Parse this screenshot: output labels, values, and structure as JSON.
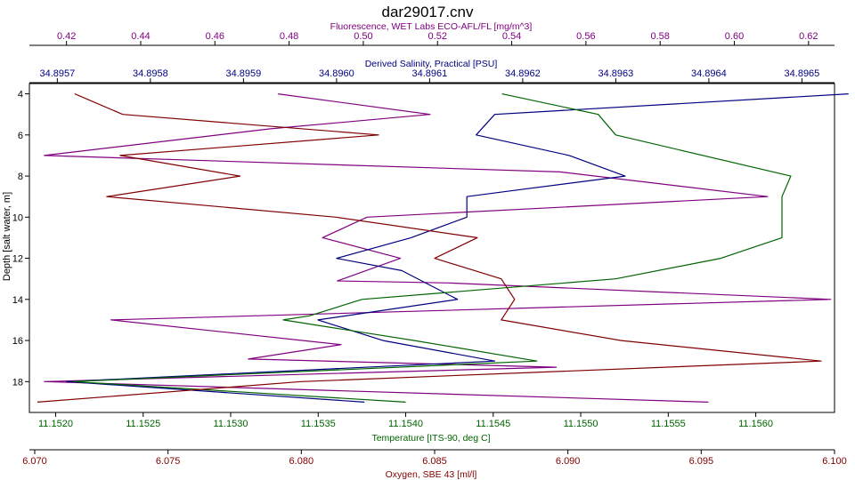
{
  "chart_data": {
    "type": "line",
    "title": "dar29017.cnv",
    "ylabel": "Depth [salt water, m]",
    "ylim": [
      19.5,
      3.5
    ],
    "yticks": [
      4,
      6,
      8,
      10,
      12,
      14,
      16,
      18
    ],
    "grid": false,
    "depths": [
      4,
      5,
      6,
      7,
      8,
      9,
      10,
      11,
      12,
      13,
      14,
      15,
      16,
      17,
      18,
      19
    ],
    "axes": {
      "fluorescence": {
        "label": "Fluorescence, WET Labs ECO-AFL/FL [mg/m^3]",
        "position": "top",
        "range": [
          0.41,
          0.627
        ],
        "ticks": [
          0.42,
          0.44,
          0.46,
          0.48,
          0.5,
          0.52,
          0.54,
          0.56,
          0.58,
          0.6,
          0.62
        ],
        "tick_labels": [
          "0.42",
          "0.44",
          "0.46",
          "0.48",
          "0.50",
          "0.52",
          "0.54",
          "0.56",
          "0.58",
          "0.60",
          "0.62"
        ],
        "color": "#800080"
      },
      "salinity": {
        "label": "Derived Salinity, Practical [PSU]",
        "position": "top",
        "range": [
          34.89567,
          34.896535
        ],
        "ticks": [
          34.8957,
          34.8958,
          34.8959,
          34.896,
          34.8961,
          34.8962,
          34.8963,
          34.8964,
          34.8965
        ],
        "tick_labels": [
          "34.8957",
          "34.8958",
          "34.8959",
          "34.8960",
          "34.8961",
          "34.8962",
          "34.8963",
          "34.8964",
          "34.8965"
        ],
        "color": "#000080"
      },
      "temperature": {
        "label": "Temperature [ITS-90, deg C]",
        "position": "bottom",
        "range": [
          11.15185,
          11.15645
        ],
        "ticks": [
          11.152,
          11.1525,
          11.153,
          11.1535,
          11.154,
          11.1545,
          11.155,
          11.1555,
          11.156
        ],
        "tick_labels": [
          "11.1520",
          "11.1525",
          "11.1530",
          "11.1535",
          "11.1540",
          "11.1545",
          "11.1550",
          "11.1555",
          "11.1560"
        ],
        "color": "#006400"
      },
      "oxygen": {
        "label": "Oxygen, SBE 43 [ml/l]",
        "position": "bottom",
        "range": [
          6.0698,
          6.1
        ],
        "ticks": [
          6.07,
          6.075,
          6.08,
          6.085,
          6.09,
          6.095,
          6.1
        ],
        "tick_labels": [
          "6.070",
          "6.075",
          "6.080",
          "6.085",
          "6.090",
          "6.095",
          "6.100"
        ],
        "color": "#800000"
      }
    },
    "series": [
      {
        "axis": "fluorescence",
        "color": "#800080",
        "points": [
          [
            0.477,
            4
          ],
          [
            0.518,
            5
          ],
          [
            0.475,
            5.7
          ],
          [
            0.414,
            7
          ],
          [
            0.553,
            7.8
          ],
          [
            0.609,
            9
          ],
          [
            0.501,
            10
          ],
          [
            0.489,
            11
          ],
          [
            0.51,
            12
          ],
          [
            0.493,
            13.1
          ],
          [
            0.523,
            13.2
          ],
          [
            0.626,
            14
          ],
          [
            0.432,
            15
          ],
          [
            0.494,
            16.2
          ],
          [
            0.469,
            16.9
          ],
          [
            0.552,
            17.3
          ],
          [
            0.414,
            18
          ],
          [
            0.593,
            19
          ]
        ]
      },
      {
        "axis": "salinity",
        "color": "#000080",
        "points": [
          [
            34.89655,
            4
          ],
          [
            34.89617,
            5
          ],
          [
            34.89615,
            6
          ],
          [
            34.89625,
            7
          ],
          [
            34.89631,
            8
          ],
          [
            34.89619,
            8.7
          ],
          [
            34.89614,
            9
          ],
          [
            34.89614,
            10
          ],
          [
            34.89608,
            11
          ],
          [
            34.896,
            12
          ],
          [
            34.89607,
            12.6
          ],
          [
            34.89613,
            14
          ],
          [
            34.89598,
            15
          ],
          [
            34.89605,
            16
          ],
          [
            34.89617,
            17
          ],
          [
            34.89571,
            18
          ],
          [
            34.89603,
            19
          ]
        ]
      },
      {
        "axis": "temperature",
        "color": "#006400",
        "points": [
          [
            11.15455,
            4
          ],
          [
            11.1551,
            5
          ],
          [
            11.1552,
            6
          ],
          [
            11.1562,
            8
          ],
          [
            11.15615,
            9
          ],
          [
            11.15615,
            11
          ],
          [
            11.1558,
            12
          ],
          [
            11.1552,
            13
          ],
          [
            11.15375,
            14
          ],
          [
            11.15345,
            14.8
          ],
          [
            11.1533,
            15
          ],
          [
            11.15405,
            16
          ],
          [
            11.15475,
            17
          ],
          [
            11.1521,
            18
          ],
          [
            11.154,
            19
          ]
        ]
      },
      {
        "axis": "oxygen",
        "color": "#800000",
        "points": [
          [
            6.0715,
            4
          ],
          [
            6.0733,
            5
          ],
          [
            6.0829,
            6
          ],
          [
            6.0732,
            7
          ],
          [
            6.0777,
            8
          ],
          [
            6.0727,
            9
          ],
          [
            6.0813,
            10
          ],
          [
            6.0866,
            11
          ],
          [
            6.085,
            12
          ],
          [
            6.0875,
            13
          ],
          [
            6.088,
            14
          ],
          [
            6.0875,
            15
          ],
          [
            6.092,
            16
          ],
          [
            6.0995,
            17
          ],
          [
            6.08,
            18
          ],
          [
            6.0701,
            19
          ]
        ]
      }
    ]
  }
}
